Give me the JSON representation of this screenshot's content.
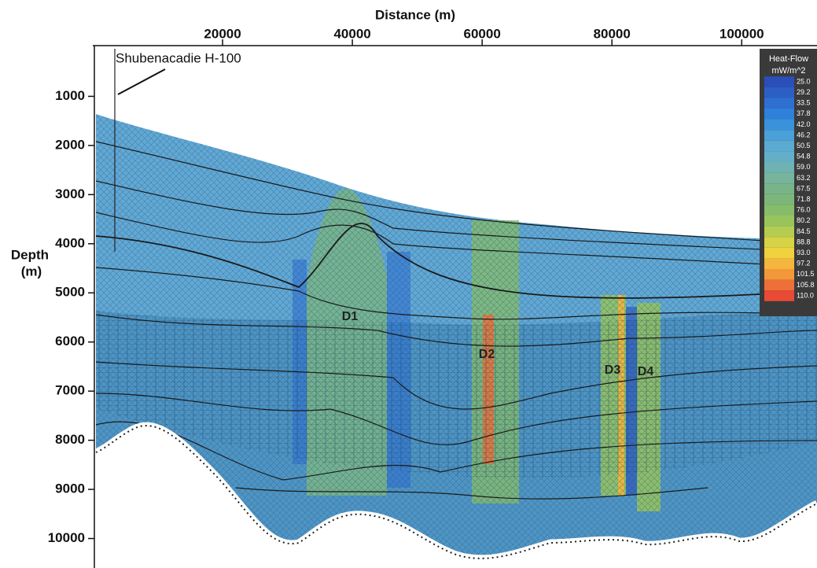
{
  "chart_data": {
    "type": "cross-section",
    "title": "Distance (m)",
    "y_label": [
      "Depth",
      "(m)"
    ],
    "xlim": [
      0,
      111600
    ],
    "xticks": [
      20000,
      40000,
      60000,
      80000,
      100000
    ],
    "ylim": [
      0,
      10600
    ],
    "yticks": [
      1000,
      2000,
      3000,
      4000,
      5000,
      6000,
      7000,
      8000,
      9000,
      10000
    ],
    "well_label": "Shubenacadie H-100",
    "annotations": [
      "D1",
      "D2",
      "D3",
      "D4"
    ],
    "colorbar": {
      "title": [
        "Heat-Flow",
        "mW/m^2"
      ],
      "ticks": [
        {
          "value": 25,
          "label": "25.0"
        },
        {
          "value": 29.2,
          "label": "29.2"
        },
        {
          "value": 33.5,
          "label": "33.5"
        },
        {
          "value": 37.8,
          "label": "37.8"
        },
        {
          "value": 42,
          "label": "42.0"
        },
        {
          "value": 46.2,
          "label": "46.2"
        },
        {
          "value": 50.5,
          "label": "50.5"
        },
        {
          "value": 54.8,
          "label": "54.8"
        },
        {
          "value": 59,
          "label": "59.0"
        },
        {
          "value": 63.2,
          "label": "63.2"
        },
        {
          "value": 67.5,
          "label": "67.5"
        },
        {
          "value": 71.8,
          "label": "71.8"
        },
        {
          "value": 76,
          "label": "76.0"
        },
        {
          "value": 80.2,
          "label": "80.2"
        },
        {
          "value": 84.5,
          "label": "84.5"
        },
        {
          "value": 88.8,
          "label": "88.8"
        },
        {
          "value": 93,
          "label": "93.0"
        },
        {
          "value": 97.2,
          "label": "97.2"
        },
        {
          "value": 101.5,
          "label": "101.5"
        },
        {
          "value": 105.8,
          "label": "105.8"
        },
        {
          "value": 110,
          "label": "110.0"
        }
      ],
      "colors": [
        "#2a4fb8",
        "#2c5fc4",
        "#2f6fd0",
        "#2f80d8",
        "#3a92dc",
        "#4aa0d8",
        "#5aaad2",
        "#64aec8",
        "#6fb2b4",
        "#76b49c",
        "#79b488",
        "#7db67a",
        "#86bc6a",
        "#98c45c",
        "#b4cc50",
        "#d6d446",
        "#efd23e",
        "#f4b63c",
        "#f2983a",
        "#ee7038",
        "#e84a36"
      ]
    }
  }
}
